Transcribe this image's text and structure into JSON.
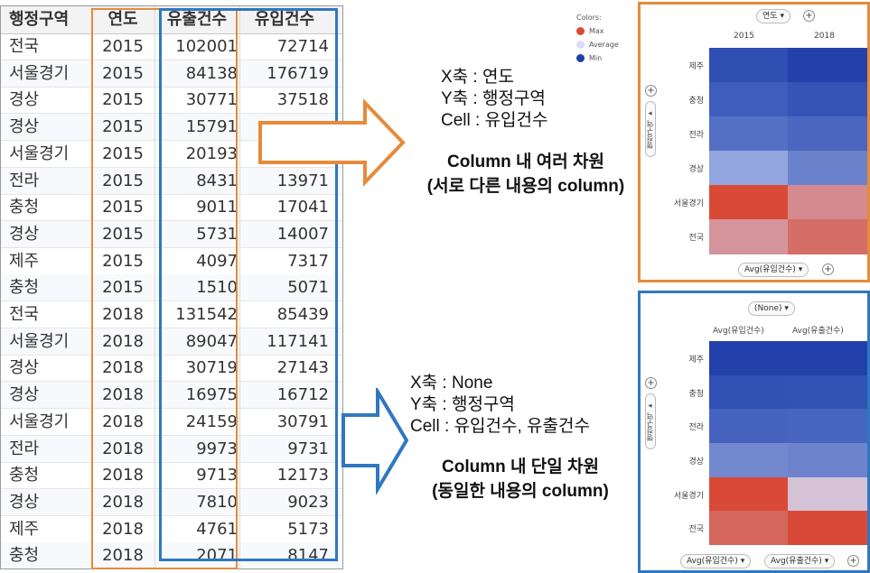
{
  "table": {
    "headers": [
      "행정구역",
      "연도",
      "유출건수",
      "유입건수"
    ],
    "rows": [
      [
        "전국",
        "2015",
        "102001",
        "72714"
      ],
      [
        "서울경기",
        "2015",
        "84138",
        "176719"
      ],
      [
        "경상",
        "2015",
        "30771",
        "37518"
      ],
      [
        "경상",
        "2015",
        "15791",
        ""
      ],
      [
        "서울경기",
        "2015",
        "20193",
        ""
      ],
      [
        "전라",
        "2015",
        "8431",
        "13971"
      ],
      [
        "충청",
        "2015",
        "9011",
        "17041"
      ],
      [
        "경상",
        "2015",
        "5731",
        "14007"
      ],
      [
        "제주",
        "2015",
        "4097",
        "7317"
      ],
      [
        "충청",
        "2015",
        "1510",
        "5071"
      ],
      [
        "전국",
        "2018",
        "131542",
        "85439"
      ],
      [
        "서울경기",
        "2018",
        "89047",
        "117141"
      ],
      [
        "경상",
        "2018",
        "30719",
        "27143"
      ],
      [
        "경상",
        "2018",
        "16975",
        "16712"
      ],
      [
        "서울경기",
        "2018",
        "24159",
        "30791"
      ],
      [
        "전라",
        "2018",
        "9973",
        "9731"
      ],
      [
        "충청",
        "2018",
        "9713",
        "12173"
      ],
      [
        "경상",
        "2018",
        "7810",
        "9023"
      ],
      [
        "제주",
        "2018",
        "4761",
        "5173"
      ],
      [
        "충청",
        "2018",
        "2071",
        "8147"
      ]
    ]
  },
  "annotation_top": {
    "lines": [
      "X축 : 연도",
      "Y축 : 행정구역",
      "Cell : 유입건수"
    ],
    "bold_lines": [
      "Column 내 여러 차원",
      "(서로 다른 내용의 column)"
    ]
  },
  "annotation_bottom": {
    "lines": [
      "X축 : None",
      "Y축 : 행정구역",
      "Cell : 유입건수, 유출건수"
    ],
    "bold_lines": [
      "Column 내 단일 차원",
      "(동일한 내용의 column)"
    ]
  },
  "legend": {
    "title": "Colors:",
    "items": [
      {
        "label": "Max",
        "color": "#d94a36"
      },
      {
        "label": "Average",
        "color": "#d9dcf2"
      },
      {
        "label": "Min",
        "color": "#1f3fa8"
      }
    ]
  },
  "panel_top": {
    "border_color": "#e68a3b",
    "x_pill": "연도",
    "columns": [
      "2015",
      "2018"
    ],
    "y_pill": "행정구역",
    "rows": [
      "제주",
      "충청",
      "전라",
      "경상",
      "서울경기",
      "전국"
    ],
    "cell_pill": "Avg(유입건수)",
    "colors": [
      [
        "#2f4fb3",
        "#2441ab"
      ],
      [
        "#3e5dbc",
        "#3554b6"
      ],
      [
        "#5370c4",
        "#4a66bf"
      ],
      [
        "#93a6e0",
        "#6a82cc"
      ],
      [
        "#d94a36",
        "#d48a8e"
      ],
      [
        "#d4949c",
        "#d46e66"
      ]
    ]
  },
  "panel_bottom": {
    "border_color": "#2f78c0",
    "x_pill": "(None)",
    "columns": [
      "Avg(유입건수)",
      "Avg(유출건수)"
    ],
    "y_pill": "행정구역",
    "rows": [
      "제주",
      "충청",
      "전라",
      "경상",
      "서울경기",
      "전국"
    ],
    "cell_pills": [
      "Avg(유입건수)",
      "Avg(유출건수)"
    ],
    "colors": [
      [
        "#2441ab",
        "#2441ab"
      ],
      [
        "#3150b4",
        "#3252b5"
      ],
      [
        "#4664bf",
        "#4765bf"
      ],
      [
        "#7288cf",
        "#6d84cd"
      ],
      [
        "#d94a36",
        "#d5c2d6"
      ],
      [
        "#d4665e",
        "#d94a36"
      ]
    ]
  }
}
